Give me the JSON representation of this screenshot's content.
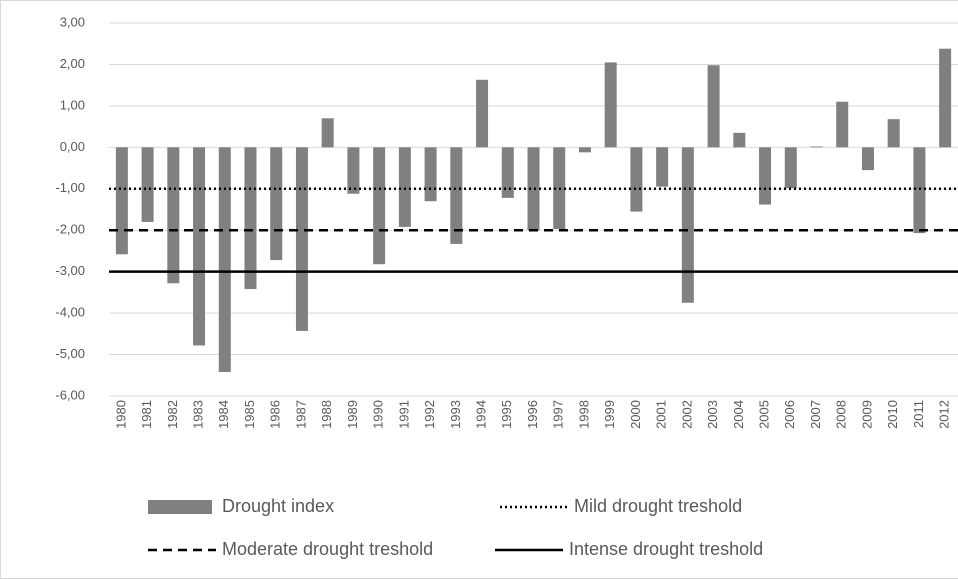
{
  "chart_data": {
    "type": "bar",
    "categories": [
      "1980",
      "1981",
      "1982",
      "1983",
      "1984",
      "1985",
      "1986",
      "1987",
      "1988",
      "1989",
      "1990",
      "1991",
      "1992",
      "1993",
      "1994",
      "1995",
      "1996",
      "1997",
      "1998",
      "1999",
      "2000",
      "2001",
      "2002",
      "2003",
      "2004",
      "2005",
      "2006",
      "2007",
      "2008",
      "2009",
      "2010",
      "2011",
      "2012"
    ],
    "series": [
      {
        "name": "Drought index",
        "type": "bar",
        "color": "#808080",
        "values": [
          -2.58,
          -1.8,
          -3.28,
          -4.78,
          -5.42,
          -3.42,
          -2.72,
          -4.43,
          0.7,
          -1.12,
          -2.82,
          -1.92,
          -1.3,
          -2.33,
          1.63,
          -1.22,
          -2.0,
          -1.97,
          -0.12,
          2.05,
          -1.55,
          -0.95,
          -3.75,
          1.98,
          0.35,
          -1.38,
          -0.98,
          0.02,
          1.1,
          -0.55,
          0.68,
          -2.07,
          2.38
        ]
      },
      {
        "name": "Mild drought treshold",
        "type": "line",
        "dash": "dotted",
        "color": "#000000",
        "values": [
          -1,
          -1,
          -1,
          -1,
          -1,
          -1,
          -1,
          -1,
          -1,
          -1,
          -1,
          -1,
          -1,
          -1,
          -1,
          -1,
          -1,
          -1,
          -1,
          -1,
          -1,
          -1,
          -1,
          -1,
          -1,
          -1,
          -1,
          -1,
          -1,
          -1,
          -1,
          -1,
          -1
        ]
      },
      {
        "name": "Moderate drought treshold",
        "type": "line",
        "dash": "dashed",
        "color": "#000000",
        "values": [
          -2,
          -2,
          -2,
          -2,
          -2,
          -2,
          -2,
          -2,
          -2,
          -2,
          -2,
          -2,
          -2,
          -2,
          -2,
          -2,
          -2,
          -2,
          -2,
          -2,
          -2,
          -2,
          -2,
          -2,
          -2,
          -2,
          -2,
          -2,
          -2,
          -2,
          -2,
          -2,
          -2
        ]
      },
      {
        "name": "Intense drought treshold",
        "type": "line",
        "dash": "solid",
        "color": "#000000",
        "values": [
          -3,
          -3,
          -3,
          -3,
          -3,
          -3,
          -3,
          -3,
          -3,
          -3,
          -3,
          -3,
          -3,
          -3,
          -3,
          -3,
          -3,
          -3,
          -3,
          -3,
          -3,
          -3,
          -3,
          -3,
          -3,
          -3,
          -3,
          -3,
          -3,
          -3,
          -3,
          -3,
          -3
        ]
      }
    ],
    "ylim": [
      -6,
      3
    ],
    "yticks": [
      {
        "value": -6,
        "label": "-6,00"
      },
      {
        "value": -5,
        "label": "-5,00"
      },
      {
        "value": -4,
        "label": "-4,00"
      },
      {
        "value": -3,
        "label": "-3,00"
      },
      {
        "value": -2,
        "label": "-2,00"
      },
      {
        "value": -1,
        "label": "-1,00"
      },
      {
        "value": 0,
        "label": "0,00"
      },
      {
        "value": 1,
        "label": "1,00"
      },
      {
        "value": 2,
        "label": "2,00"
      },
      {
        "value": 3,
        "label": "3,00"
      }
    ],
    "grid": true,
    "legend": "bottom"
  }
}
